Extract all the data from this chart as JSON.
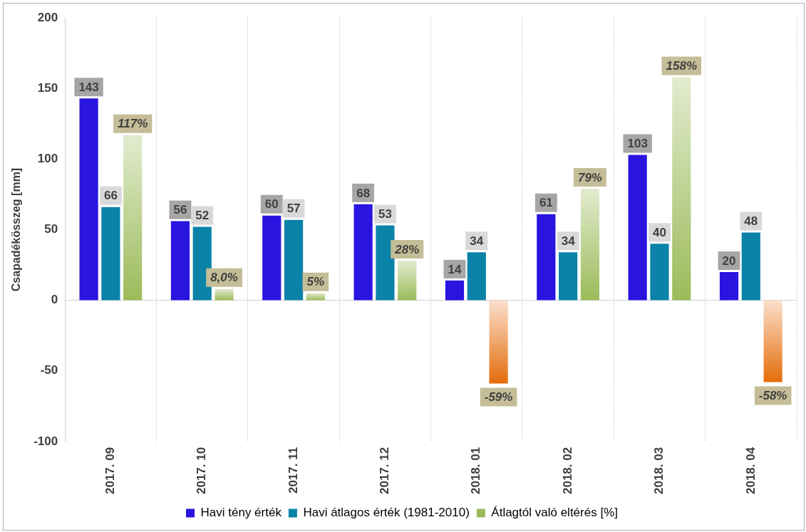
{
  "chart_data": {
    "type": "bar",
    "ylabel": "Csapadékösszeg [mm]",
    "categories": [
      "2017. 09",
      "2017. 10",
      "2017. 11",
      "2017. 12",
      "2018. 01",
      "2018. 02",
      "2018. 03",
      "2018. 04"
    ],
    "series": [
      {
        "name": "Havi tény érték",
        "color": "#2a14e0",
        "values": [
          143,
          56,
          60,
          68,
          14,
          61,
          103,
          20
        ],
        "value_labels": [
          "143",
          "56",
          "60",
          "68",
          "14",
          "61",
          "103",
          "20"
        ]
      },
      {
        "name": "Havi átlagos érték (1981-2010)",
        "color": "#0b82a8",
        "values": [
          66,
          52,
          57,
          53,
          34,
          34,
          40,
          48
        ],
        "value_labels": [
          "66",
          "52",
          "57",
          "53",
          "34",
          "34",
          "40",
          "48"
        ]
      },
      {
        "name": "Átlagtól való eltérés [%]",
        "color": "#9bbb59",
        "colors": [
          "#9bbb59",
          "#9bbb59",
          "#9bbb59",
          "#9bbb59",
          "#e46c0a",
          "#9bbb59",
          "#9bbb59",
          "#e46c0a"
        ],
        "values": [
          117,
          8.0,
          5,
          28,
          -59,
          79,
          158,
          -58
        ],
        "value_labels": [
          "117%",
          "8,0%",
          "5%",
          "28%",
          "-59%",
          "79%",
          "158%",
          "-58%"
        ]
      }
    ],
    "ylim": [
      -100,
      200
    ],
    "yticks": [
      -100,
      -50,
      0,
      50,
      100,
      150,
      200
    ],
    "grid": "x",
    "legend": "bottom"
  }
}
